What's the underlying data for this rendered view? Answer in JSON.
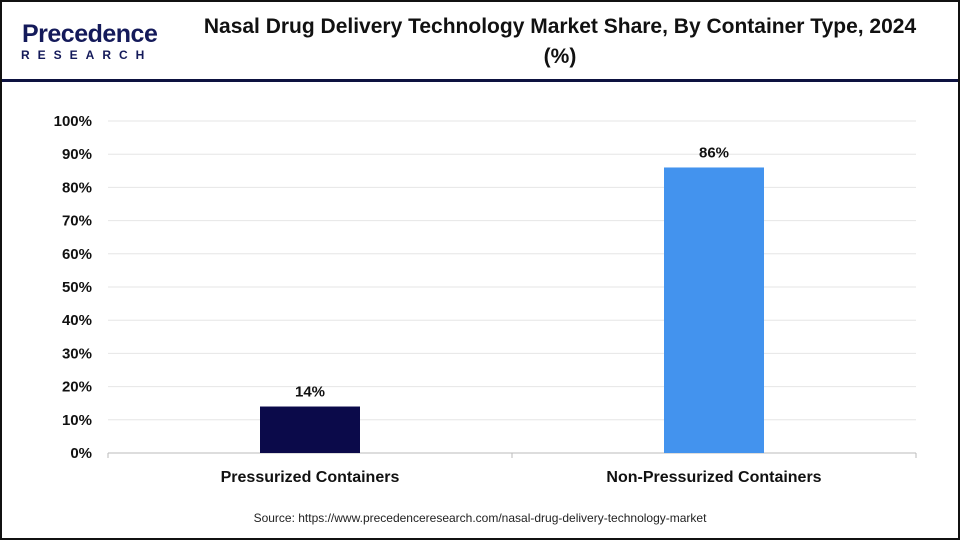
{
  "logo": {
    "brand": "Precedence",
    "sub": "RESEARCH"
  },
  "header": {
    "title": "Nasal Drug Delivery Technology Market Share, By Container Type, 2024 (%)"
  },
  "source": "Source: https://www.precedenceresearch.com/nasal-drug-delivery-technology-market",
  "chart_data": {
    "type": "bar",
    "title": "Nasal Drug Delivery Technology Market Share, By Container Type, 2024 (%)",
    "categories": [
      "Pressurized Containers",
      "Non-Pressurized Containers"
    ],
    "values": [
      14,
      86
    ],
    "data_labels": [
      "14%",
      "86%"
    ],
    "colors": [
      "#0b0a4a",
      "#4393ee"
    ],
    "ylim": [
      0,
      100
    ],
    "yticks": [
      "0%",
      "10%",
      "20%",
      "30%",
      "40%",
      "50%",
      "60%",
      "70%",
      "80%",
      "90%",
      "100%"
    ],
    "grid": true,
    "legend": "none"
  }
}
